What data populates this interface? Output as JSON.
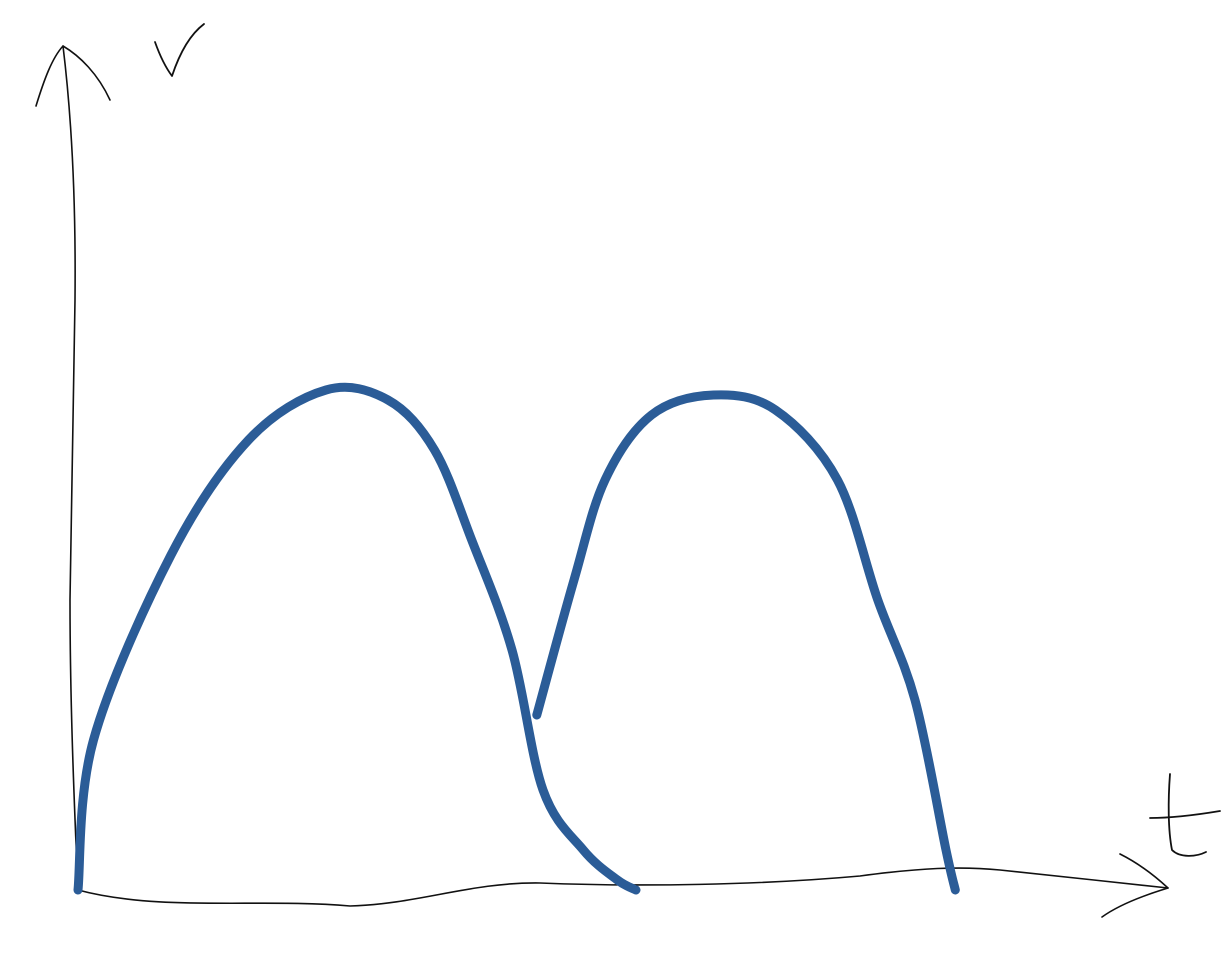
{
  "chart_data": {
    "type": "line",
    "xlabel": "t",
    "ylabel": "v",
    "grid": false,
    "legend": "none",
    "series": [
      {
        "color": "#2b5c97",
        "segments": [
          {
            "t": [
              0,
              0.05,
              0.3,
              0.55,
              0.8,
              1.0,
              1.15,
              1.27,
              1.4,
              1.5,
              1.63,
              1.74,
              1.8
            ],
            "v": [
              0,
              0.3,
              0.67,
              0.9,
              1.0,
              0.98,
              0.88,
              0.7,
              0.48,
              0.2,
              0.08,
              0.02,
              0
            ]
          },
          {
            "t": [
              1.48,
              1.6,
              1.7,
              1.85,
              2.05,
              2.25,
              2.45,
              2.58,
              2.7,
              2.8,
              2.83
            ],
            "v": [
              0.35,
              0.62,
              0.82,
              0.95,
              0.99,
              0.96,
              0.82,
              0.58,
              0.38,
              0.08,
              0
            ]
          }
        ]
      }
    ],
    "colors": {
      "axis": "#111111",
      "curve": "#2b5c97"
    }
  }
}
